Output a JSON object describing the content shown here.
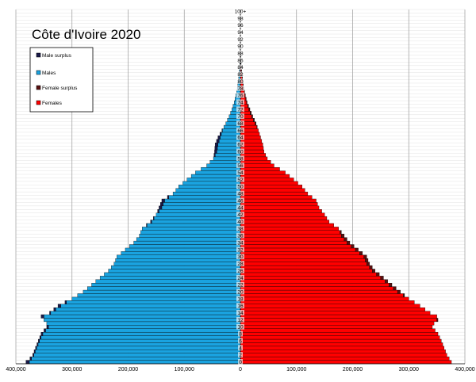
{
  "chart_data": {
    "type": "bar",
    "orientation": "horizontal-population-pyramid",
    "title": "Côte d'Ivoire 2020",
    "age_labels": [
      "0",
      "2",
      "4",
      "6",
      "8",
      "10",
      "12",
      "14",
      "16",
      "18",
      "20",
      "22",
      "24",
      "26",
      "28",
      "30",
      "32",
      "34",
      "36",
      "38",
      "40",
      "42",
      "44",
      "46",
      "48",
      "50",
      "52",
      "54",
      "56",
      "58",
      "60",
      "62",
      "64",
      "66",
      "68",
      "70",
      "72",
      "74",
      "76",
      "78",
      "80",
      "82",
      "84",
      "86",
      "88",
      "90",
      "92",
      "94",
      "96",
      "98",
      "100+"
    ],
    "x_ticks": [
      "400,000",
      "300,000",
      "200,000",
      "100,000",
      "0",
      "100,000",
      "200,000",
      "300,000",
      "400,000"
    ],
    "xlim": [
      -400000,
      400000
    ],
    "grid": true,
    "legend_position": "top-left",
    "legend": [
      {
        "name": "Male surplus",
        "color": "#1a1a4a"
      },
      {
        "name": "Males",
        "color": "#1aa3e0"
      },
      {
        "name": "Female surplus",
        "color": "#5a1010"
      },
      {
        "name": "Females",
        "color": "#ff0000"
      }
    ],
    "series": [
      {
        "name": "Males",
        "color": "#1aa3e0",
        "anchors": [
          [
            0,
            382000
          ],
          [
            1,
            375000
          ],
          [
            2,
            370000
          ],
          [
            4,
            365000
          ],
          [
            6,
            360000
          ],
          [
            8,
            355000
          ],
          [
            10,
            345000
          ],
          [
            11,
            345000
          ],
          [
            12,
            350000
          ],
          [
            13,
            355000
          ],
          [
            14,
            340000
          ],
          [
            16,
            325000
          ],
          [
            18,
            300000
          ],
          [
            20,
            280000
          ],
          [
            22,
            265000
          ],
          [
            24,
            250000
          ],
          [
            26,
            235000
          ],
          [
            28,
            225000
          ],
          [
            30,
            220000
          ],
          [
            32,
            205000
          ],
          [
            34,
            190000
          ],
          [
            36,
            180000
          ],
          [
            38,
            175000
          ],
          [
            40,
            160000
          ],
          [
            42,
            150000
          ],
          [
            44,
            145000
          ],
          [
            46,
            140000
          ],
          [
            48,
            120000
          ],
          [
            50,
            110000
          ],
          [
            52,
            95000
          ],
          [
            54,
            80000
          ],
          [
            56,
            60000
          ],
          [
            58,
            48000
          ],
          [
            60,
            46000
          ],
          [
            62,
            45000
          ],
          [
            64,
            40000
          ],
          [
            66,
            33000
          ],
          [
            68,
            26000
          ],
          [
            70,
            20000
          ],
          [
            72,
            15000
          ],
          [
            74,
            11000
          ],
          [
            76,
            8000
          ],
          [
            78,
            5500
          ],
          [
            80,
            4000
          ],
          [
            82,
            2500
          ],
          [
            84,
            1500
          ],
          [
            86,
            800
          ],
          [
            88,
            400
          ],
          [
            90,
            200
          ],
          [
            92,
            100
          ],
          [
            94,
            50
          ],
          [
            96,
            20
          ],
          [
            98,
            10
          ],
          [
            100,
            5
          ]
        ]
      },
      {
        "name": "Females",
        "color": "#ff0000",
        "anchors": [
          [
            0,
            376000
          ],
          [
            1,
            372000
          ],
          [
            2,
            368000
          ],
          [
            4,
            363000
          ],
          [
            6,
            358000
          ],
          [
            8,
            352000
          ],
          [
            10,
            342000
          ],
          [
            11,
            345000
          ],
          [
            12,
            352000
          ],
          [
            13,
            350000
          ],
          [
            14,
            338000
          ],
          [
            16,
            320000
          ],
          [
            18,
            300000
          ],
          [
            20,
            285000
          ],
          [
            22,
            270000
          ],
          [
            24,
            255000
          ],
          [
            26,
            240000
          ],
          [
            28,
            230000
          ],
          [
            30,
            225000
          ],
          [
            32,
            210000
          ],
          [
            34,
            195000
          ],
          [
            36,
            185000
          ],
          [
            38,
            175000
          ],
          [
            40,
            158000
          ],
          [
            42,
            150000
          ],
          [
            44,
            140000
          ],
          [
            46,
            135000
          ],
          [
            48,
            120000
          ],
          [
            50,
            110000
          ],
          [
            52,
            95000
          ],
          [
            54,
            80000
          ],
          [
            56,
            60000
          ],
          [
            58,
            48000
          ],
          [
            60,
            42000
          ],
          [
            62,
            40000
          ],
          [
            64,
            36000
          ],
          [
            66,
            32000
          ],
          [
            68,
            28000
          ],
          [
            70,
            22000
          ],
          [
            72,
            17000
          ],
          [
            74,
            12000
          ],
          [
            76,
            9000
          ],
          [
            78,
            6000
          ],
          [
            80,
            4500
          ],
          [
            82,
            3000
          ],
          [
            84,
            1800
          ],
          [
            86,
            1000
          ],
          [
            88,
            500
          ],
          [
            90,
            250
          ],
          [
            92,
            120
          ],
          [
            94,
            60
          ],
          [
            96,
            25
          ],
          [
            98,
            10
          ],
          [
            100,
            5
          ]
        ]
      }
    ]
  }
}
